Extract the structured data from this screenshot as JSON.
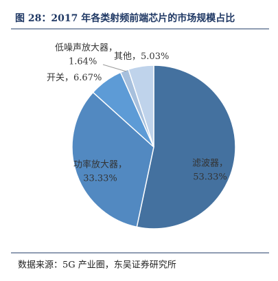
{
  "title": "图 28：2017 年各类射频前端芯片的市场规模占比",
  "source": "数据来源：5G 产业圈，东吴证券研究所",
  "chart_data": {
    "type": "pie",
    "categories": [
      "滤波器，",
      "功率放大器，",
      "开关，",
      "低噪声放大器，",
      "其他，"
    ],
    "values": [
      53.33,
      33.33,
      6.67,
      1.64,
      5.03
    ],
    "value_labels": [
      "53.33%",
      "33.33%",
      "6.67%",
      "1.64%",
      "5.03%"
    ],
    "colors": [
      "#44719f",
      "#5289c1",
      "#5d9bd6",
      "#a7c0dd",
      "#bfd3eb"
    ]
  }
}
